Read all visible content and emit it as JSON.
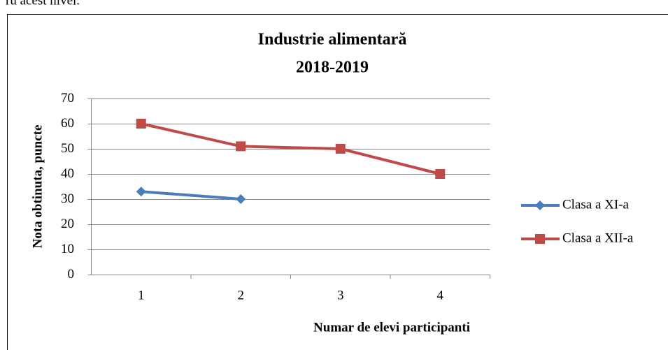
{
  "caption_fragment": "ru acest nivel.",
  "chart_data": {
    "type": "line",
    "title": "Industrie alimentară",
    "subtitle": "2018-2019",
    "x_label": "Numar de elevi participanti",
    "y_label": "Nota obtinuta, puncte",
    "categories": [
      "1",
      "2",
      "3",
      "4"
    ],
    "series": [
      {
        "name": "Clasa a XI-a",
        "color": "#4a7ebb",
        "marker": "diamond",
        "values": [
          33,
          30,
          null,
          null
        ]
      },
      {
        "name": "Clasa a XII-a",
        "color": "#be4b48",
        "marker": "square",
        "values": [
          60,
          51,
          50,
          40
        ]
      }
    ],
    "ylim": [
      0,
      70
    ],
    "yticks": [
      0,
      10,
      20,
      30,
      40,
      50,
      60,
      70
    ],
    "grid": true,
    "legend": "right"
  }
}
